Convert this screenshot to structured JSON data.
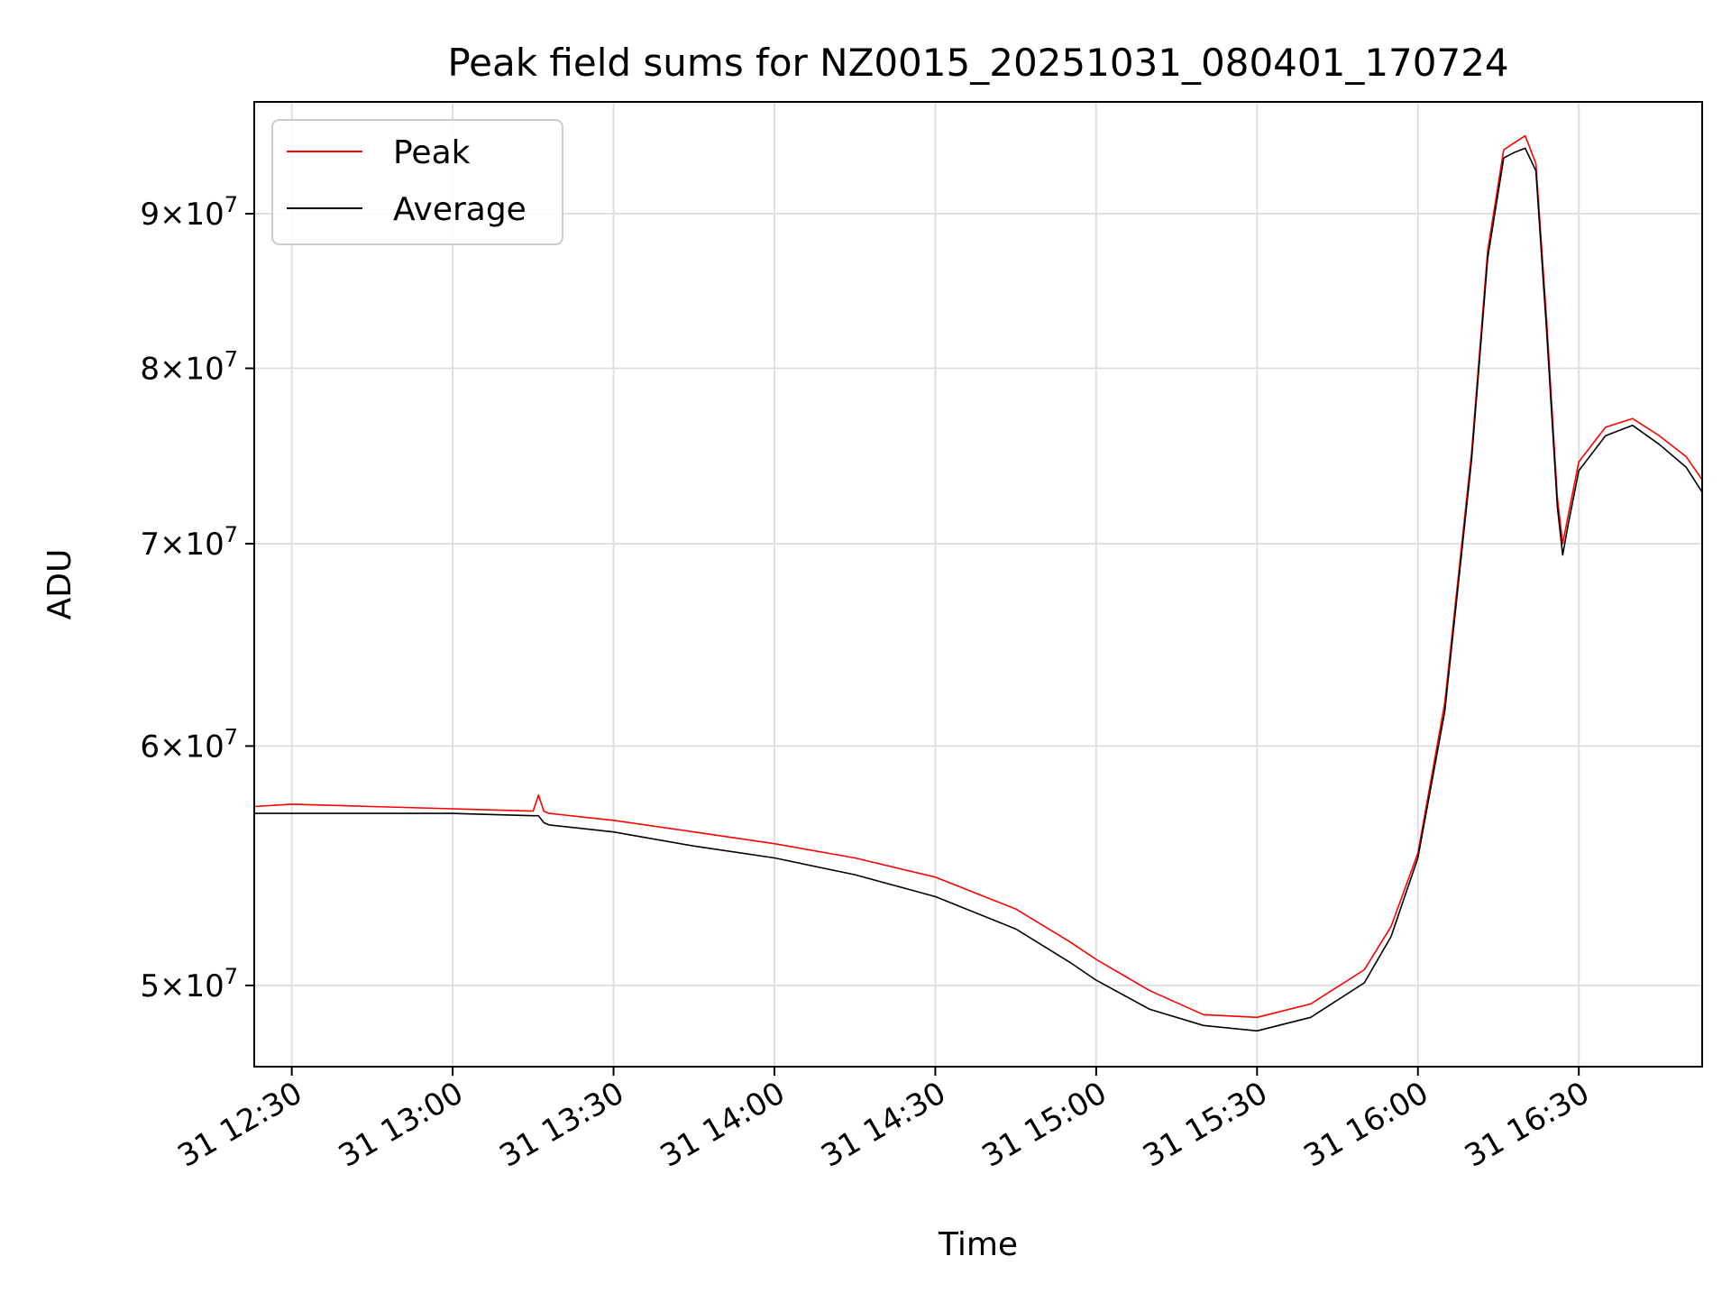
{
  "chart_data": {
    "type": "line",
    "title": "Peak field sums for NZ0015_20251031_080401_170724",
    "xlabel": "Time",
    "ylabel": "ADU",
    "y_scale": "log",
    "ylim": [
      47000000,
      98000000
    ],
    "xlim": [
      "2025-10-31 12:23",
      "2025-10-31 16:53"
    ],
    "x_ticks": [
      {
        "time": "2025-10-31 12:30",
        "label": "31 12:30"
      },
      {
        "time": "2025-10-31 13:00",
        "label": "31 13:00"
      },
      {
        "time": "2025-10-31 13:30",
        "label": "31 13:30"
      },
      {
        "time": "2025-10-31 14:00",
        "label": "31 14:00"
      },
      {
        "time": "2025-10-31 14:30",
        "label": "31 14:30"
      },
      {
        "time": "2025-10-31 15:00",
        "label": "31 15:00"
      },
      {
        "time": "2025-10-31 15:30",
        "label": "31 15:30"
      },
      {
        "time": "2025-10-31 16:00",
        "label": "31 16:00"
      },
      {
        "time": "2025-10-31 16:30",
        "label": "31 16:30"
      }
    ],
    "y_ticks": [
      {
        "value": 50000000,
        "mantissa": "5",
        "exponent": "7"
      },
      {
        "value": 60000000,
        "mantissa": "6",
        "exponent": "7"
      },
      {
        "value": 70000000,
        "mantissa": "7",
        "exponent": "7"
      },
      {
        "value": 80000000,
        "mantissa": "8",
        "exponent": "7"
      },
      {
        "value": 90000000,
        "mantissa": "9",
        "exponent": "7"
      }
    ],
    "grid": true,
    "legend_position": "top-left",
    "series": [
      {
        "name": "Peak",
        "color": "#ff0000",
        "x": [
          "2025-10-31 12:23",
          "2025-10-31 12:30",
          "2025-10-31 12:45",
          "2025-10-31 13:00",
          "2025-10-31 13:15",
          "2025-10-31 13:16",
          "2025-10-31 13:17",
          "2025-10-31 13:18",
          "2025-10-31 13:30",
          "2025-10-31 13:45",
          "2025-10-31 14:00",
          "2025-10-31 14:15",
          "2025-10-31 14:30",
          "2025-10-31 14:45",
          "2025-10-31 14:55",
          "2025-10-31 15:00",
          "2025-10-31 15:10",
          "2025-10-31 15:20",
          "2025-10-31 15:30",
          "2025-10-31 15:40",
          "2025-10-31 15:50",
          "2025-10-31 15:55",
          "2025-10-31 16:00",
          "2025-10-31 16:05",
          "2025-10-31 16:10",
          "2025-10-31 16:13",
          "2025-10-31 16:16",
          "2025-10-31 16:18",
          "2025-10-31 16:20",
          "2025-10-31 16:22",
          "2025-10-31 16:24",
          "2025-10-31 16:26",
          "2025-10-31 16:27",
          "2025-10-31 16:28",
          "2025-10-31 16:30",
          "2025-10-31 16:35",
          "2025-10-31 16:40",
          "2025-10-31 16:45",
          "2025-10-31 16:50",
          "2025-10-31 16:53"
        ],
        "values": [
          57300000,
          57400000,
          57300000,
          57200000,
          57100000,
          57800000,
          57100000,
          57000000,
          56700000,
          56200000,
          55700000,
          55100000,
          54300000,
          53000000,
          51700000,
          51000000,
          49800000,
          48900000,
          48800000,
          49300000,
          50600000,
          52300000,
          55300000,
          62000000,
          75000000,
          87500000,
          94500000,
          95000000,
          95500000,
          93500000,
          83000000,
          72500000,
          70000000,
          71500000,
          74500000,
          76500000,
          77000000,
          76000000,
          74800000,
          73500000
        ]
      },
      {
        "name": "Average",
        "color": "#000000",
        "x": [
          "2025-10-31 12:23",
          "2025-10-31 12:30",
          "2025-10-31 12:45",
          "2025-10-31 13:00",
          "2025-10-31 13:15",
          "2025-10-31 13:16",
          "2025-10-31 13:17",
          "2025-10-31 13:18",
          "2025-10-31 13:30",
          "2025-10-31 13:45",
          "2025-10-31 14:00",
          "2025-10-31 14:15",
          "2025-10-31 14:30",
          "2025-10-31 14:45",
          "2025-10-31 14:55",
          "2025-10-31 15:00",
          "2025-10-31 15:10",
          "2025-10-31 15:20",
          "2025-10-31 15:30",
          "2025-10-31 15:40",
          "2025-10-31 15:50",
          "2025-10-31 15:55",
          "2025-10-31 16:00",
          "2025-10-31 16:05",
          "2025-10-31 16:10",
          "2025-10-31 16:13",
          "2025-10-31 16:16",
          "2025-10-31 16:18",
          "2025-10-31 16:20",
          "2025-10-31 16:22",
          "2025-10-31 16:24",
          "2025-10-31 16:26",
          "2025-10-31 16:27",
          "2025-10-31 16:28",
          "2025-10-31 16:30",
          "2025-10-31 16:35",
          "2025-10-31 16:40",
          "2025-10-31 16:45",
          "2025-10-31 16:50",
          "2025-10-31 16:53"
        ],
        "values": [
          57000000,
          57000000,
          57000000,
          57000000,
          56900000,
          56900000,
          56600000,
          56500000,
          56200000,
          55600000,
          55100000,
          54400000,
          53500000,
          52200000,
          50900000,
          50200000,
          49100000,
          48500000,
          48300000,
          48800000,
          50100000,
          51900000,
          55100000,
          61600000,
          74600000,
          87000000,
          93900000,
          94300000,
          94600000,
          93000000,
          82300000,
          72000000,
          69400000,
          71000000,
          74000000,
          76000000,
          76600000,
          75500000,
          74200000,
          72800000
        ]
      }
    ]
  }
}
